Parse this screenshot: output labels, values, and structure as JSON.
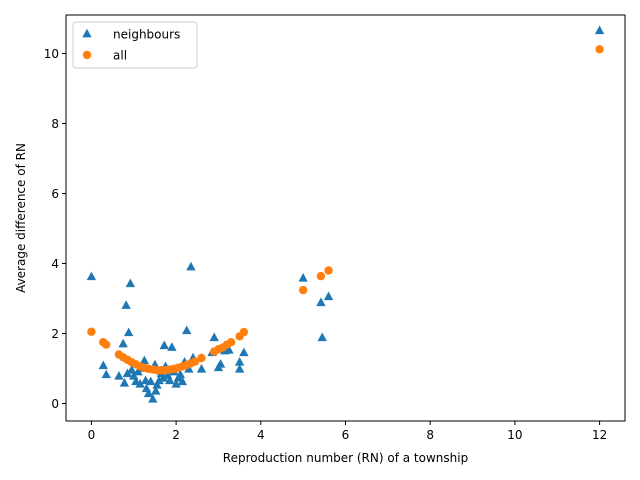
{
  "chart_data": {
    "type": "scatter",
    "title": "",
    "xlabel": "Reproduction number (RN) of a township",
    "ylabel": "Average difference of RN",
    "xlim": [
      -0.6,
      12.6
    ],
    "ylim": [
      -0.5,
      11.1
    ],
    "xticks": [
      0,
      2,
      4,
      6,
      8,
      10,
      12
    ],
    "yticks": [
      0,
      2,
      4,
      6,
      8,
      10
    ],
    "grid": false,
    "legend": "top-left",
    "series": [
      {
        "name": "neighbours",
        "marker": "triangle",
        "color": "#1f77b4",
        "points": [
          [
            0.0,
            3.62
          ],
          [
            0.28,
            1.08
          ],
          [
            0.35,
            0.82
          ],
          [
            0.65,
            0.78
          ],
          [
            0.75,
            1.7
          ],
          [
            0.78,
            0.58
          ],
          [
            0.82,
            2.8
          ],
          [
            0.85,
            0.85
          ],
          [
            0.88,
            2.02
          ],
          [
            0.92,
            3.42
          ],
          [
            0.95,
            0.95
          ],
          [
            1.0,
            0.78
          ],
          [
            1.05,
            0.62
          ],
          [
            1.1,
            0.9
          ],
          [
            1.15,
            0.55
          ],
          [
            1.2,
            1.0
          ],
          [
            1.25,
            1.22
          ],
          [
            1.28,
            0.65
          ],
          [
            1.3,
            0.42
          ],
          [
            1.35,
            0.28
          ],
          [
            1.4,
            0.62
          ],
          [
            1.45,
            0.12
          ],
          [
            1.5,
            1.1
          ],
          [
            1.52,
            0.35
          ],
          [
            1.55,
            0.52
          ],
          [
            1.6,
            0.65
          ],
          [
            1.65,
            0.85
          ],
          [
            1.7,
            0.72
          ],
          [
            1.72,
            1.65
          ],
          [
            1.75,
            1.05
          ],
          [
            1.8,
            0.8
          ],
          [
            1.85,
            0.65
          ],
          [
            1.9,
            1.6
          ],
          [
            1.95,
            0.9
          ],
          [
            2.0,
            0.55
          ],
          [
            2.05,
            0.72
          ],
          [
            2.1,
            0.82
          ],
          [
            2.15,
            0.62
          ],
          [
            2.2,
            1.18
          ],
          [
            2.25,
            2.08
          ],
          [
            2.3,
            0.98
          ],
          [
            2.35,
            3.9
          ],
          [
            2.4,
            1.3
          ],
          [
            2.6,
            0.98
          ],
          [
            2.85,
            1.45
          ],
          [
            2.9,
            1.88
          ],
          [
            3.0,
            1.02
          ],
          [
            3.05,
            1.12
          ],
          [
            3.15,
            1.5
          ],
          [
            3.25,
            1.52
          ],
          [
            3.5,
            0.98
          ],
          [
            3.5,
            1.18
          ],
          [
            3.6,
            1.45
          ],
          [
            5.0,
            3.58
          ],
          [
            5.42,
            2.88
          ],
          [
            5.45,
            1.88
          ],
          [
            5.6,
            3.05
          ],
          [
            12.0,
            10.65
          ]
        ]
      },
      {
        "name": "all",
        "marker": "circle",
        "color": "#ff7f0e",
        "points": [
          [
            0.0,
            2.05
          ],
          [
            0.28,
            1.75
          ],
          [
            0.35,
            1.68
          ],
          [
            0.65,
            1.4
          ],
          [
            0.75,
            1.32
          ],
          [
            0.85,
            1.25
          ],
          [
            0.95,
            1.18
          ],
          [
            1.05,
            1.12
          ],
          [
            1.15,
            1.06
          ],
          [
            1.25,
            1.02
          ],
          [
            1.35,
            0.99
          ],
          [
            1.45,
            0.97
          ],
          [
            1.55,
            0.95
          ],
          [
            1.65,
            0.95
          ],
          [
            1.75,
            0.95
          ],
          [
            1.85,
            0.97
          ],
          [
            1.95,
            0.99
          ],
          [
            2.05,
            1.02
          ],
          [
            2.15,
            1.06
          ],
          [
            2.25,
            1.1
          ],
          [
            2.35,
            1.15
          ],
          [
            2.45,
            1.2
          ],
          [
            2.6,
            1.3
          ],
          [
            2.9,
            1.48
          ],
          [
            3.0,
            1.55
          ],
          [
            3.1,
            1.6
          ],
          [
            3.2,
            1.68
          ],
          [
            3.3,
            1.75
          ],
          [
            3.5,
            1.92
          ],
          [
            3.6,
            2.04
          ],
          [
            5.0,
            3.24
          ],
          [
            5.42,
            3.64
          ],
          [
            5.6,
            3.8
          ],
          [
            12.0,
            10.12
          ]
        ]
      }
    ]
  }
}
